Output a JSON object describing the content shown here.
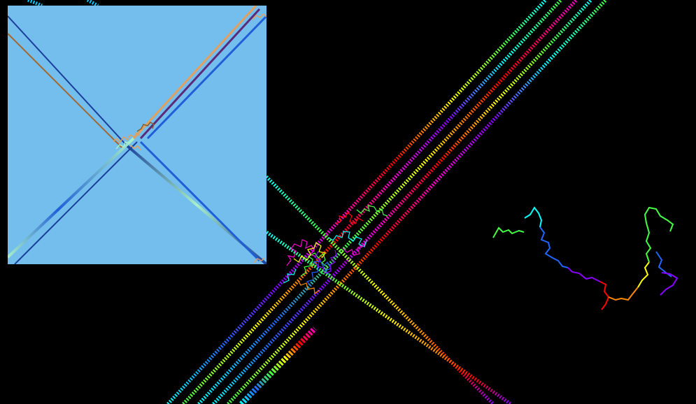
{
  "colors": {
    "background": "#000000",
    "inset_background": "#74BEEE",
    "rainbow": [
      "#FF0000",
      "#FF8800",
      "#FFFF00",
      "#44FF44",
      "#00FFFF",
      "#2266FF",
      "#8800FF",
      "#FF00CC"
    ],
    "inset_lines": [
      "#1A3F9A",
      "#A06830",
      "#5B2A7A",
      "#E0A060",
      "#1E5FD8",
      "#A8F0C8",
      "#8A5A2A",
      "#3A7AE0"
    ]
  },
  "icons": {
    "main_canvas": "random-walk-visualization",
    "inset": "inset-diagonal-walk-view",
    "walk": "brownian-path-icon"
  }
}
